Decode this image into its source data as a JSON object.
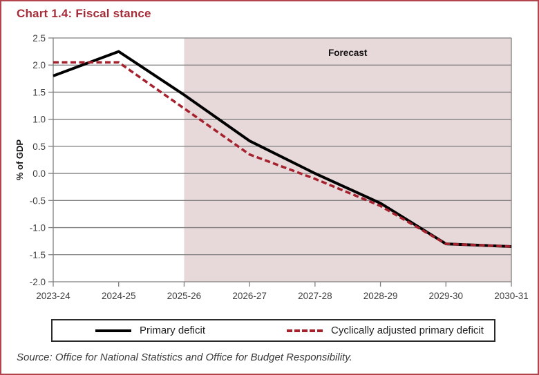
{
  "title": "Chart 1.4: Fiscal stance",
  "source": "Source: Office for National Statistics and Office for Budget Responsibility.",
  "colors": {
    "title_red": "#a62c39",
    "frame_border_red": "#b2444e",
    "forecast_band": "#e7d8da",
    "primary_line": "#000000",
    "adjusted_line": "#a5212d",
    "grid": "#7f7f7f",
    "axis_text": "#3d3d3d",
    "label_text": "#111111"
  },
  "chart_data": {
    "type": "line",
    "title": "Chart 1.4: Fiscal stance",
    "xlabel": "",
    "ylabel": "% of GDP",
    "ylim": [
      -2.0,
      2.5
    ],
    "ytick_step": 0.5,
    "ytick_labels": [
      "2.5",
      "2.0",
      "1.5",
      "1.0",
      "0.5",
      "0.0",
      "-0.5",
      "-1.0",
      "-1.5",
      "-2.0"
    ],
    "grid": true,
    "legend_position": "bottom",
    "categories": [
      "2023-24",
      "2024-25",
      "2025-26",
      "2026-27",
      "2027-28",
      "2028-29",
      "2029-30",
      "2030-31"
    ],
    "series": [
      {
        "name": "Primary deficit",
        "style": "solid",
        "color": "#000000",
        "values": [
          1.8,
          2.25,
          1.45,
          0.6,
          0.0,
          -0.55,
          -1.3,
          -1.35
        ]
      },
      {
        "name": "Cyclically adjusted primary deficit",
        "style": "dashed",
        "color": "#a5212d",
        "values": [
          2.05,
          2.05,
          1.2,
          0.35,
          -0.1,
          -0.6,
          -1.3,
          -1.35
        ]
      }
    ],
    "forecast": {
      "label": "Forecast",
      "start_category": "2025-26",
      "start_index": 2
    }
  }
}
